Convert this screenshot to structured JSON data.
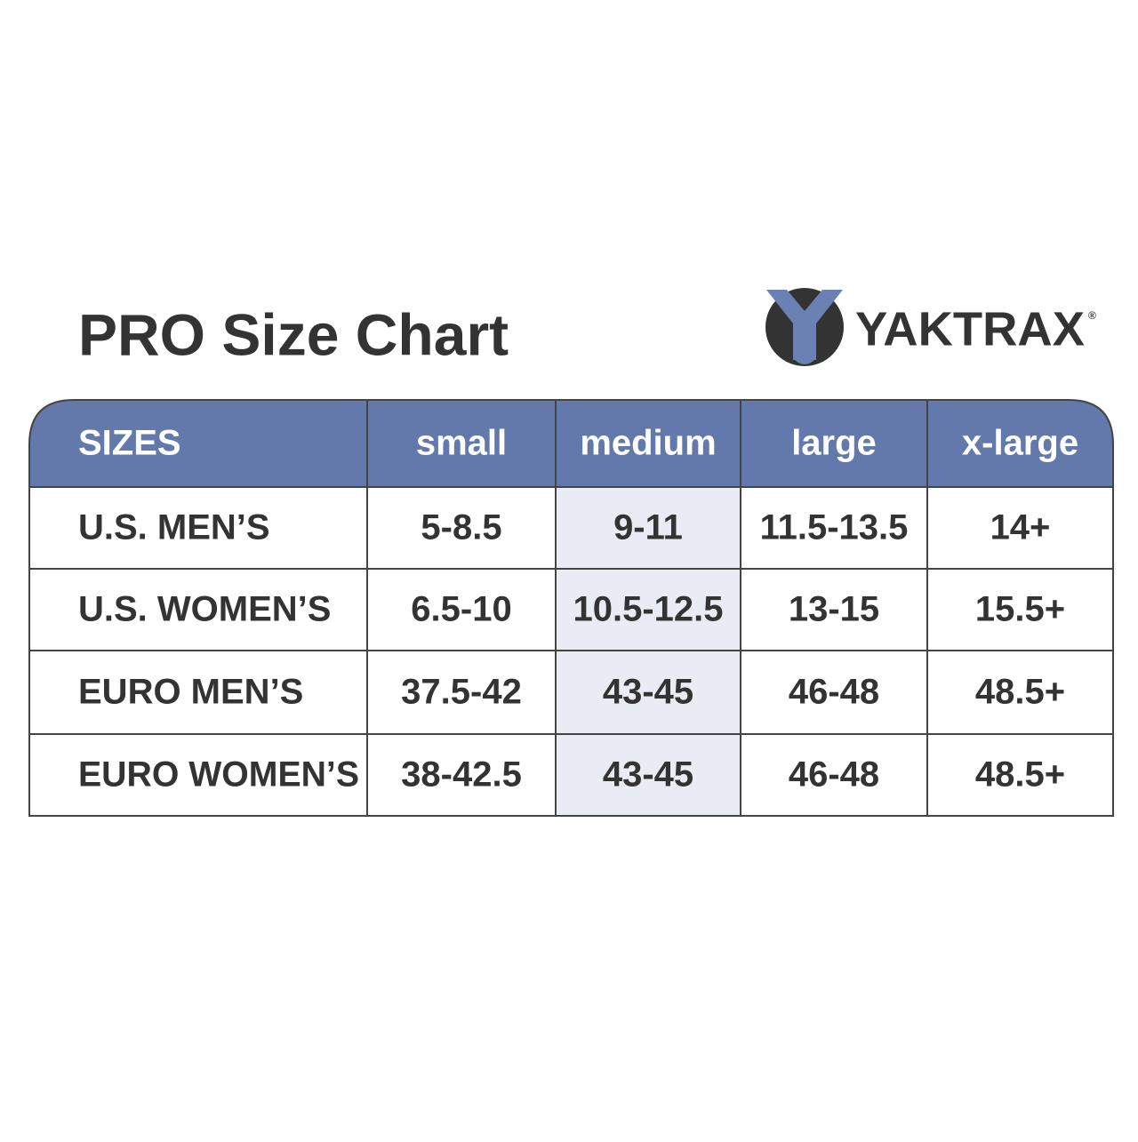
{
  "header": {
    "title": "PRO Size Chart",
    "logo": "YAKTRAX",
    "registered": "®"
  },
  "table": {
    "header": [
      "SIZES",
      "small",
      "medium",
      "large",
      "x-large"
    ],
    "rows": [
      [
        "U.S. MEN’S",
        "5-8.5",
        "9-11",
        "11.5-13.5",
        "14+"
      ],
      [
        "U.S. WOMEN’S",
        "6.5-10",
        "10.5-12.5",
        "13-15",
        "15.5+"
      ],
      [
        "EURO MEN’S",
        "37.5-42",
        "43-45",
        "46-48",
        "48.5+"
      ],
      [
        "EURO WOMEN’S",
        "38-42.5",
        "43-45",
        "46-48",
        "48.5+"
      ]
    ]
  }
}
